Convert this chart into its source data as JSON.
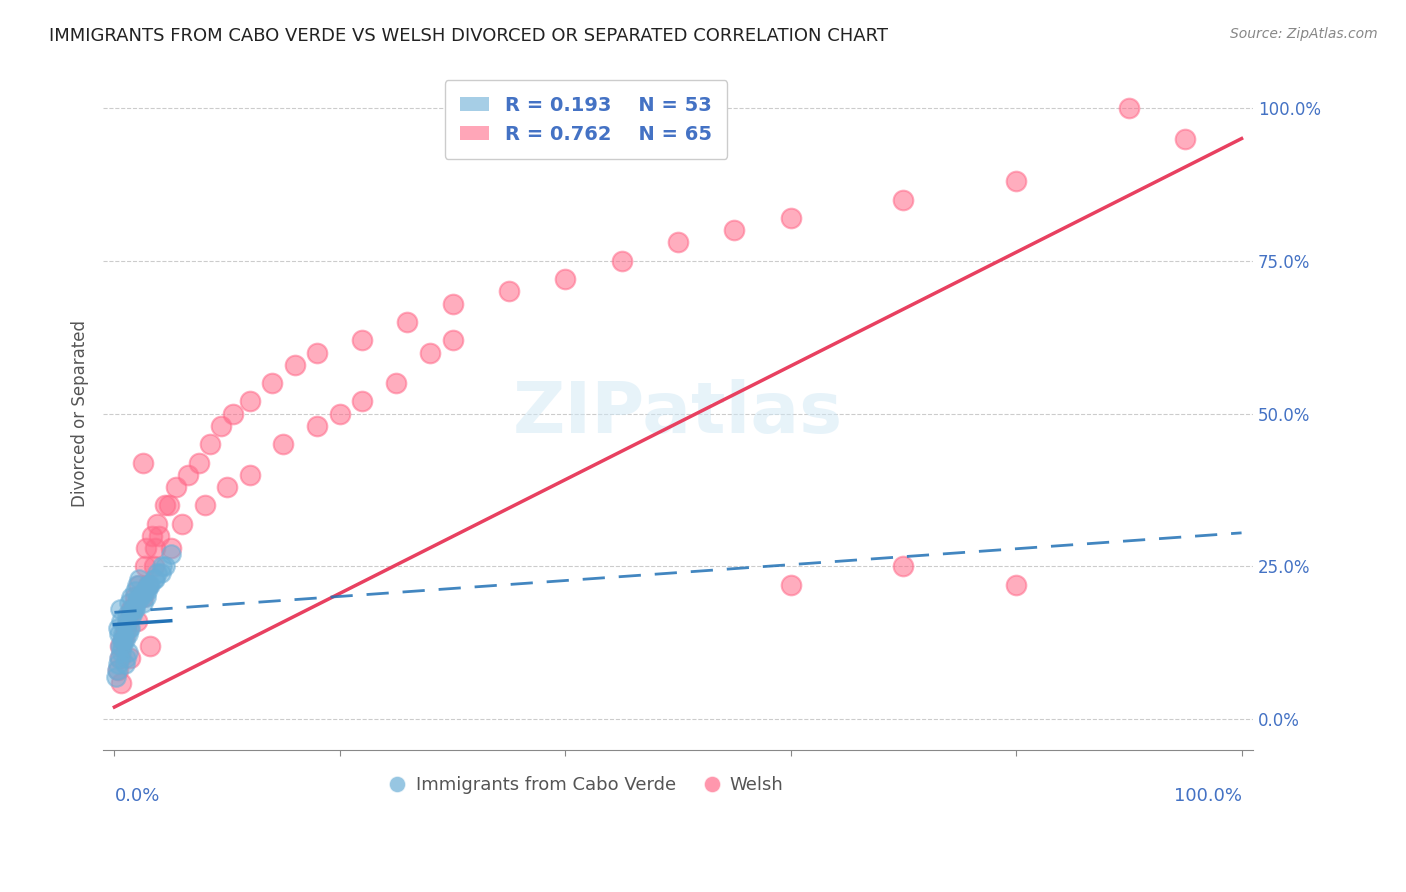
{
  "title": "IMMIGRANTS FROM CABO VERDE VS WELSH DIVORCED OR SEPARATED CORRELATION CHART",
  "source": "Source: ZipAtlas.com",
  "ylabel": "Divorced or Separated",
  "yticks": [
    "0.0%",
    "25.0%",
    "50.0%",
    "75.0%",
    "100.0%"
  ],
  "ytick_vals": [
    0.0,
    0.25,
    0.5,
    0.75,
    1.0
  ],
  "xlim": [
    0.0,
    1.0
  ],
  "ylim": [
    -0.05,
    1.05
  ],
  "legend_blue_r": "0.193",
  "legend_blue_n": "53",
  "legend_pink_r": "0.762",
  "legend_pink_n": "65",
  "legend_blue_label": "Immigrants from Cabo Verde",
  "legend_pink_label": "Welsh",
  "watermark": "ZIPatlas",
  "blue_scatter_x": [
    0.005,
    0.007,
    0.003,
    0.01,
    0.008,
    0.012,
    0.006,
    0.004,
    0.009,
    0.011,
    0.015,
    0.013,
    0.018,
    0.02,
    0.016,
    0.022,
    0.025,
    0.03,
    0.028,
    0.035,
    0.002,
    0.001,
    0.014,
    0.017,
    0.019,
    0.023,
    0.027,
    0.032,
    0.038,
    0.042,
    0.005,
    0.008,
    0.006,
    0.011,
    0.009,
    0.013,
    0.016,
    0.021,
    0.026,
    0.031,
    0.003,
    0.007,
    0.012,
    0.018,
    0.024,
    0.029,
    0.036,
    0.041,
    0.045,
    0.05,
    0.004,
    0.01,
    0.015
  ],
  "blue_scatter_y": [
    0.18,
    0.12,
    0.15,
    0.1,
    0.13,
    0.11,
    0.16,
    0.14,
    0.09,
    0.17,
    0.2,
    0.19,
    0.21,
    0.22,
    0.18,
    0.23,
    0.19,
    0.22,
    0.2,
    0.23,
    0.08,
    0.07,
    0.15,
    0.18,
    0.19,
    0.2,
    0.21,
    0.22,
    0.24,
    0.25,
    0.12,
    0.14,
    0.11,
    0.16,
    0.13,
    0.15,
    0.17,
    0.2,
    0.21,
    0.22,
    0.09,
    0.13,
    0.14,
    0.18,
    0.2,
    0.21,
    0.23,
    0.24,
    0.25,
    0.27,
    0.1,
    0.15,
    0.17
  ],
  "pink_scatter_x": [
    0.005,
    0.01,
    0.015,
    0.02,
    0.025,
    0.03,
    0.035,
    0.04,
    0.05,
    0.06,
    0.08,
    0.1,
    0.12,
    0.15,
    0.18,
    0.2,
    0.22,
    0.25,
    0.28,
    0.3,
    0.005,
    0.008,
    0.012,
    0.016,
    0.022,
    0.028,
    0.033,
    0.038,
    0.045,
    0.055,
    0.065,
    0.075,
    0.085,
    0.095,
    0.105,
    0.12,
    0.14,
    0.16,
    0.18,
    0.22,
    0.26,
    0.3,
    0.35,
    0.4,
    0.45,
    0.5,
    0.55,
    0.6,
    0.7,
    0.8,
    0.009,
    0.018,
    0.027,
    0.036,
    0.048,
    0.6,
    0.7,
    0.8,
    0.9,
    0.95,
    0.003,
    0.006,
    0.014,
    0.032,
    0.025
  ],
  "pink_scatter_y": [
    0.12,
    0.15,
    0.18,
    0.16,
    0.2,
    0.22,
    0.25,
    0.3,
    0.28,
    0.32,
    0.35,
    0.38,
    0.4,
    0.45,
    0.48,
    0.5,
    0.52,
    0.55,
    0.6,
    0.62,
    0.1,
    0.13,
    0.16,
    0.18,
    0.22,
    0.28,
    0.3,
    0.32,
    0.35,
    0.38,
    0.4,
    0.42,
    0.45,
    0.48,
    0.5,
    0.52,
    0.55,
    0.58,
    0.6,
    0.62,
    0.65,
    0.68,
    0.7,
    0.72,
    0.75,
    0.78,
    0.8,
    0.82,
    0.85,
    0.88,
    0.14,
    0.2,
    0.25,
    0.28,
    0.35,
    0.22,
    0.25,
    0.22,
    1.0,
    0.95,
    0.08,
    0.06,
    0.1,
    0.12,
    0.42
  ],
  "blue_line_y_start": 0.155,
  "blue_line_y_end": 0.28,
  "pink_line_y_start": 0.02,
  "pink_line_y_end": 0.95,
  "dash_line_x": [
    0.0,
    1.0
  ],
  "dash_line_y_start": 0.175,
  "dash_line_y_end": 0.305,
  "blue_color": "#6baed6",
  "pink_color": "#ff6b8a",
  "blue_line_color": "#2171b5",
  "pink_line_color": "#e84060",
  "grid_color": "#cccccc",
  "background_color": "#ffffff",
  "tick_label_color": "#4472c4",
  "font_color_title": "#222222"
}
